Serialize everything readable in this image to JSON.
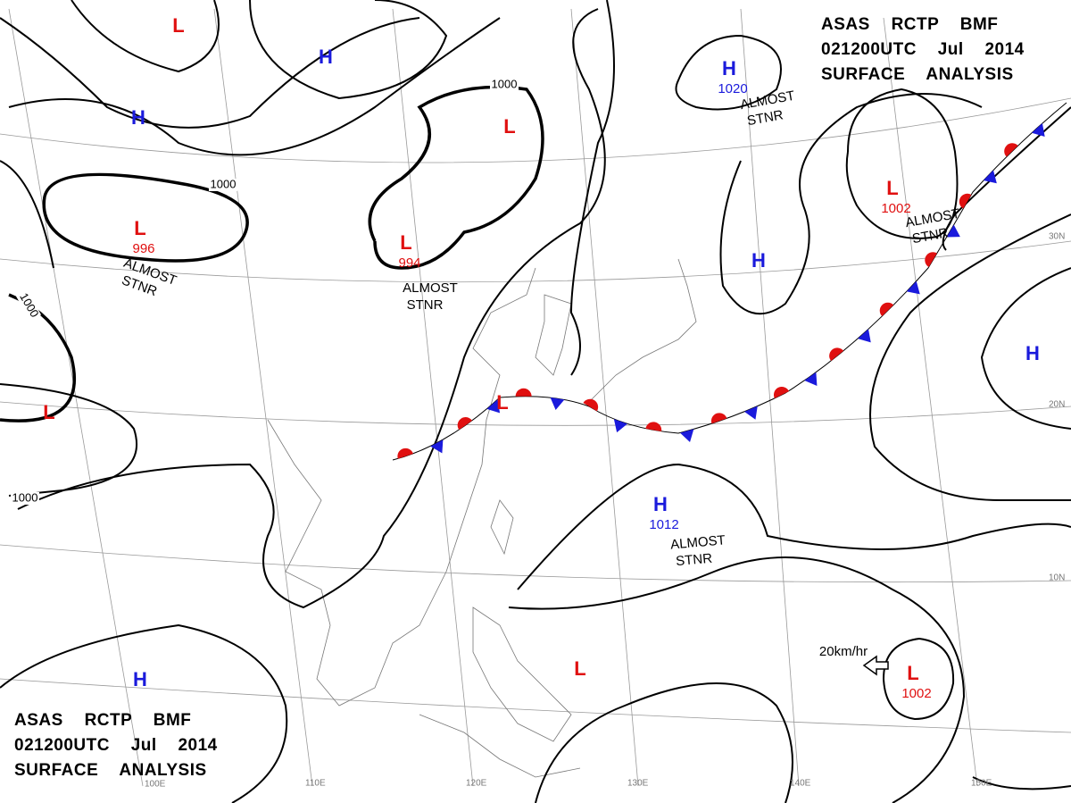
{
  "header_top": {
    "lines": [
      "ASAS RCTP BMF",
      "021200UTC Jul 2014",
      "SURFACE ANALYSIS"
    ]
  },
  "header_bottom": {
    "lines": [
      "ASAS RCTP BMF",
      "021200UTC Jul 2014",
      "SURFACE ANALYSIS"
    ]
  },
  "pressure_systems": [
    {
      "symbol": "L"
    },
    {
      "symbol": "H"
    },
    {
      "symbol": "H"
    },
    {
      "symbol": "L",
      "pressure": "996"
    },
    {
      "symbol": "L",
      "pressure": "994"
    },
    {
      "symbol": "L"
    },
    {
      "symbol": "H",
      "pressure": "1020"
    },
    {
      "symbol": "L",
      "pressure": "1002"
    },
    {
      "symbol": "H"
    },
    {
      "symbol": "H"
    },
    {
      "symbol": "L"
    },
    {
      "symbol": "L"
    },
    {
      "symbol": "H",
      "pressure": "1012"
    },
    {
      "symbol": "L"
    },
    {
      "symbol": "L",
      "pressure": "1002"
    },
    {
      "symbol": "H"
    }
  ],
  "notes": [
    [
      "ALMOST",
      "STNR"
    ],
    [
      "ALMOST",
      "STNR"
    ],
    [
      "ALMOST",
      "STNR"
    ],
    [
      "ALMOST",
      "STNR"
    ],
    [
      "ALMOST",
      "STNR"
    ]
  ],
  "isobar_labels": [
    "1000",
    "1000",
    "1000",
    "1000"
  ],
  "lat_labels": [
    "30N",
    "20N",
    "10N"
  ],
  "lon_labels": [
    "100E",
    "110E",
    "120E",
    "130E",
    "140E",
    "150E"
  ],
  "wind_arrow": "20km/hr"
}
